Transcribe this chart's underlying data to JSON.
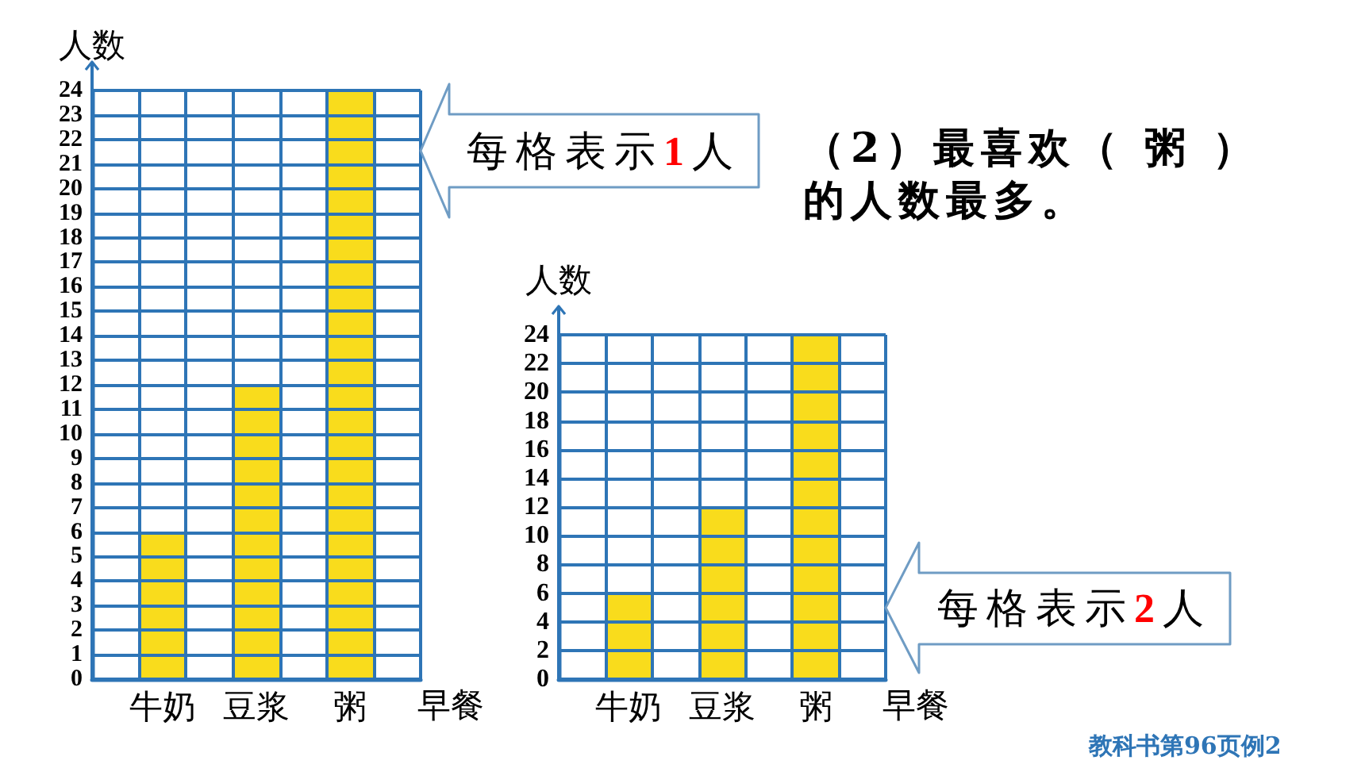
{
  "chart_data": [
    {
      "type": "bar",
      "ylabel": "人数",
      "xlabel": "早餐",
      "categories": [
        null,
        "牛奶",
        null,
        "豆浆",
        null,
        "粥",
        null
      ],
      "values": [
        null,
        6,
        null,
        12,
        null,
        24,
        null
      ],
      "color": "#f9dc1c",
      "ylim": [
        0,
        24
      ],
      "yticks": [
        0,
        1,
        2,
        3,
        4,
        5,
        6,
        7,
        8,
        9,
        10,
        11,
        12,
        13,
        14,
        15,
        16,
        17,
        18,
        19,
        20,
        21,
        22,
        23,
        24
      ],
      "grid": true,
      "annotations": [
        "每格表示1人",
        "（2）最喜欢（ 粥 ）的人数最多。"
      ]
    },
    {
      "type": "bar",
      "ylabel": "人数",
      "xlabel": "早餐",
      "categories": [
        null,
        "牛奶",
        null,
        "豆浆",
        null,
        "粥",
        null
      ],
      "values": [
        null,
        6,
        null,
        12,
        null,
        24,
        null
      ],
      "color": "#f9dc1c",
      "ylim": [
        0,
        24
      ],
      "yticks": [
        0,
        2,
        4,
        6,
        8,
        10,
        12,
        14,
        16,
        18,
        20,
        22,
        24
      ],
      "grid": true,
      "annotations": [
        "每格表示2人",
        "教科书第96页例2"
      ]
    }
  ]
}
